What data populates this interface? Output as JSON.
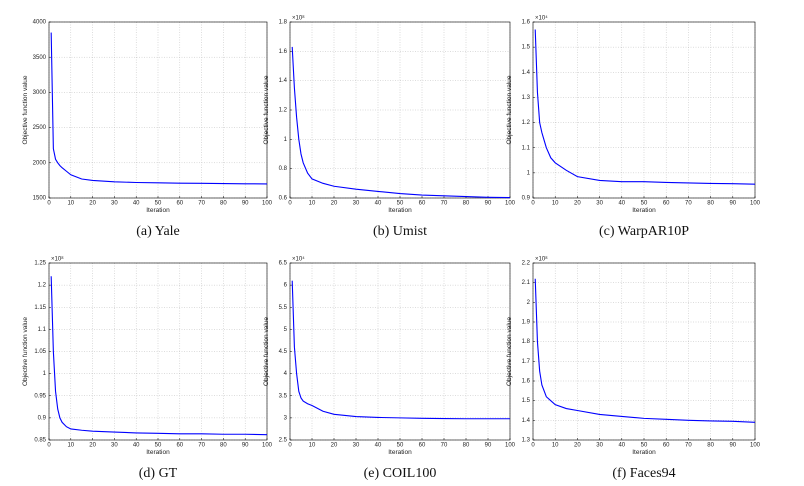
{
  "chart_data": [
    {
      "type": "line",
      "title": "(a) Yale",
      "xlabel": "Iteration",
      "ylabel": "Objective function value",
      "color": "#0000ff",
      "grid": true,
      "x": [
        1,
        2,
        3,
        4,
        5,
        6,
        8,
        10,
        15,
        20,
        30,
        40,
        50,
        60,
        70,
        80,
        90,
        100
      ],
      "values": [
        3850,
        2200,
        2050,
        2000,
        1960,
        1930,
        1880,
        1830,
        1770,
        1750,
        1730,
        1720,
        1715,
        1710,
        1708,
        1705,
        1702,
        1700
      ],
      "xlim": [
        0,
        100
      ],
      "xticks": [
        0,
        10,
        20,
        30,
        40,
        50,
        60,
        70,
        80,
        90,
        100
      ],
      "ylim": [
        1500,
        4000
      ],
      "yticks": [
        1500,
        2000,
        2500,
        3000,
        3500,
        4000
      ]
    },
    {
      "type": "line",
      "title": "(b) Umist",
      "xlabel": "Iteration",
      "ylabel": "Objective function value",
      "multiplier": "×10⁸",
      "color": "#0000ff",
      "grid": true,
      "x": [
        1,
        2,
        3,
        4,
        5,
        6,
        8,
        10,
        15,
        20,
        30,
        40,
        50,
        60,
        70,
        80,
        90,
        100
      ],
      "values": [
        1.63,
        1.35,
        1.15,
        1.0,
        0.9,
        0.84,
        0.77,
        0.73,
        0.7,
        0.68,
        0.66,
        0.645,
        0.63,
        0.62,
        0.615,
        0.61,
        0.605,
        0.603
      ],
      "xlim": [
        0,
        100
      ],
      "xticks": [
        0,
        10,
        20,
        30,
        40,
        50,
        60,
        70,
        80,
        90,
        100
      ],
      "ylim": [
        0.6,
        1.8
      ],
      "yticks": [
        0.6,
        0.8,
        1,
        1.2,
        1.4,
        1.6,
        1.8
      ]
    },
    {
      "type": "line",
      "title": "(c) WarpAR10P",
      "xlabel": "Iteration",
      "ylabel": "Objective function value",
      "multiplier": "×10⁴",
      "color": "#0000ff",
      "grid": true,
      "x": [
        1,
        2,
        3,
        4,
        5,
        6,
        8,
        10,
        15,
        20,
        30,
        40,
        50,
        60,
        70,
        80,
        90,
        100
      ],
      "values": [
        1.57,
        1.32,
        1.2,
        1.16,
        1.13,
        1.1,
        1.06,
        1.04,
        1.01,
        0.985,
        0.97,
        0.965,
        0.965,
        0.962,
        0.96,
        0.958,
        0.957,
        0.955
      ],
      "xlim": [
        0,
        100
      ],
      "xticks": [
        0,
        10,
        20,
        30,
        40,
        50,
        60,
        70,
        80,
        90,
        100
      ],
      "ylim": [
        0.9,
        1.6
      ],
      "yticks": [
        0.9,
        1,
        1.1,
        1.2,
        1.3,
        1.4,
        1.5,
        1.6
      ]
    },
    {
      "type": "line",
      "title": "(d) GT",
      "xlabel": "Iteration",
      "ylabel": "Objective function value",
      "multiplier": "×10⁸",
      "color": "#0000ff",
      "grid": true,
      "x": [
        1,
        2,
        3,
        4,
        5,
        6,
        8,
        10,
        15,
        20,
        30,
        40,
        50,
        60,
        70,
        80,
        90,
        100
      ],
      "values": [
        1.22,
        1.05,
        0.96,
        0.92,
        0.9,
        0.89,
        0.88,
        0.875,
        0.872,
        0.87,
        0.868,
        0.866,
        0.865,
        0.864,
        0.864,
        0.863,
        0.863,
        0.862
      ],
      "xlim": [
        0,
        100
      ],
      "xticks": [
        0,
        10,
        20,
        30,
        40,
        50,
        60,
        70,
        80,
        90,
        100
      ],
      "ylim": [
        0.85,
        1.25
      ],
      "yticks": [
        0.85,
        0.9,
        0.95,
        1,
        1.05,
        1.1,
        1.15,
        1.2,
        1.25
      ]
    },
    {
      "type": "line",
      "title": "(e) COIL100",
      "xlabel": "Iteration",
      "ylabel": "Objective function value",
      "multiplier": "×10⁴",
      "color": "#0000ff",
      "grid": true,
      "x": [
        1,
        2,
        3,
        4,
        5,
        6,
        8,
        10,
        15,
        20,
        30,
        40,
        50,
        60,
        70,
        80,
        90,
        100
      ],
      "values": [
        6.1,
        4.6,
        4.0,
        3.6,
        3.45,
        3.38,
        3.32,
        3.28,
        3.15,
        3.08,
        3.03,
        3.01,
        3.0,
        2.99,
        2.985,
        2.98,
        2.98,
        2.98
      ],
      "xlim": [
        0,
        100
      ],
      "xticks": [
        0,
        10,
        20,
        30,
        40,
        50,
        60,
        70,
        80,
        90,
        100
      ],
      "ylim": [
        2.5,
        6.5
      ],
      "yticks": [
        2.5,
        3,
        3.5,
        4,
        4.5,
        5,
        5.5,
        6,
        6.5
      ]
    },
    {
      "type": "line",
      "title": "(f) Faces94",
      "xlabel": "Iteration",
      "ylabel": "Objective function value",
      "multiplier": "×10⁸",
      "color": "#0000ff",
      "grid": true,
      "x": [
        1,
        2,
        3,
        4,
        5,
        6,
        8,
        10,
        15,
        20,
        30,
        40,
        50,
        60,
        70,
        80,
        90,
        100
      ],
      "values": [
        2.12,
        1.8,
        1.65,
        1.58,
        1.55,
        1.52,
        1.5,
        1.48,
        1.46,
        1.45,
        1.43,
        1.42,
        1.41,
        1.405,
        1.4,
        1.397,
        1.395,
        1.39
      ],
      "xlim": [
        0,
        100
      ],
      "xticks": [
        0,
        10,
        20,
        30,
        40,
        50,
        60,
        70,
        80,
        90,
        100
      ],
      "ylim": [
        1.3,
        2.2
      ],
      "yticks": [
        1.3,
        1.4,
        1.5,
        1.6,
        1.7,
        1.8,
        1.9,
        2,
        2.1,
        2.2
      ]
    }
  ]
}
